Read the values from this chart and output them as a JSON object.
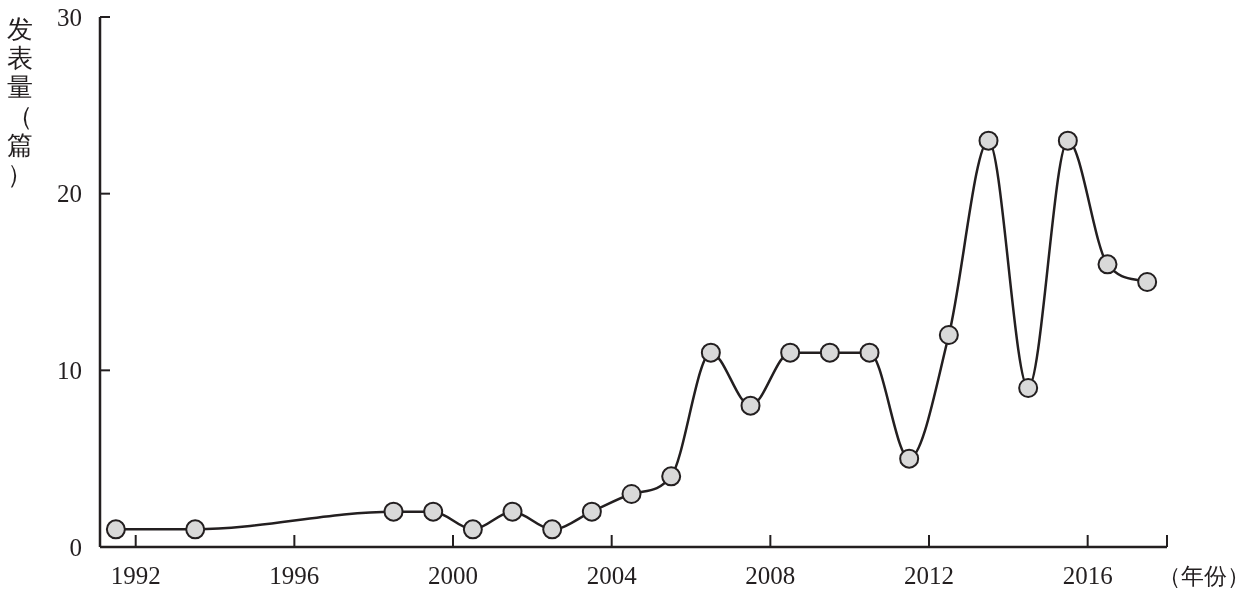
{
  "chart_data": {
    "type": "line",
    "xlabel": "（年份）",
    "ylabel": "发表量（篇）",
    "x": [
      1991.5,
      1993.5,
      1998.5,
      1999.5,
      2000.5,
      2001.5,
      2002.5,
      2003.5,
      2004.5,
      2005.5,
      2006.5,
      2007.5,
      2008.5,
      2009.5,
      2010.5,
      2011.5,
      2012.5,
      2013.5,
      2014.5,
      2015.5,
      2016.5,
      2017.5
    ],
    "series": [
      {
        "color": "#231f20",
        "values": [
          1,
          1,
          2,
          2,
          1,
          2,
          1,
          2,
          3,
          4,
          11,
          8,
          11,
          11,
          11,
          5,
          12,
          23,
          9,
          23,
          16,
          15
        ]
      }
    ],
    "xlim": [
      1991.1,
      2018
    ],
    "ylim": [
      0,
      30
    ],
    "xticks": [
      1992,
      1996,
      2000,
      2004,
      2008,
      2012,
      2016
    ],
    "yticks": [
      0,
      10,
      20,
      30
    ],
    "marker": "circle",
    "line_style": "solid"
  }
}
